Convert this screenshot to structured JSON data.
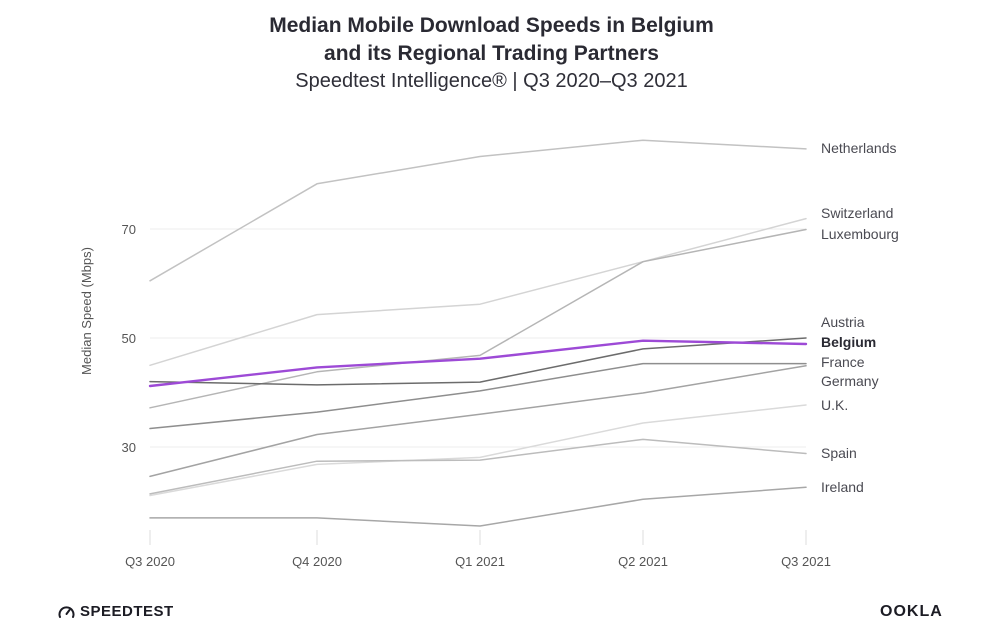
{
  "header": {
    "title_line1": "Median Mobile Download Speeds in Belgium",
    "title_line2": "and its Regional Trading Partners",
    "subtitle": "Speedtest Intelligence® | Q3 2020–Q3 2021"
  },
  "footer": {
    "brand_left": "SPEEDTEST",
    "brand_right": "OOKLA",
    "icon": "speedometer-icon"
  },
  "colors": {
    "belgium": "#9d4ad6",
    "grid": "#ececec",
    "axis": "#555555"
  },
  "chart_data": {
    "type": "line",
    "title": "Median Mobile Download Speeds in Belgium and its Regional Trading Partners",
    "subtitle": "Speedtest Intelligence® | Q3 2020–Q3 2021",
    "xlabel": "",
    "ylabel": "Median Speed (Mbps)",
    "categories": [
      "Q3 2020",
      "Q4 2020",
      "Q1 2021",
      "Q2 2021",
      "Q3 2021"
    ],
    "ylim": [
      15.5,
      88
    ],
    "yticks": [
      30,
      50,
      70
    ],
    "grid": true,
    "legend": "direct-labels-right",
    "highlight": "Belgium",
    "series": [
      {
        "name": "Netherlands",
        "values": [
          60.5,
          78.3,
          83.3,
          86.3,
          84.7
        ],
        "color": "#c2c2c2"
      },
      {
        "name": "Switzerland",
        "values": [
          45.0,
          54.3,
          56.2,
          64.0,
          71.9
        ],
        "color": "#d4d4d4"
      },
      {
        "name": "Luxembourg",
        "values": [
          37.2,
          43.8,
          46.8,
          64.0,
          69.9
        ],
        "color": "#b5b5b5"
      },
      {
        "name": "Austria",
        "values": [
          42.0,
          41.4,
          41.9,
          48.0,
          50.0
        ],
        "color": "#6c6c6c"
      },
      {
        "name": "Belgium",
        "values": [
          41.2,
          44.6,
          46.2,
          49.5,
          48.9
        ],
        "color": "#9d4ad6"
      },
      {
        "name": "France",
        "values": [
          33.4,
          36.4,
          40.3,
          45.3,
          45.3
        ],
        "color": "#8e8e8e"
      },
      {
        "name": "Germany",
        "values": [
          24.6,
          32.3,
          36.0,
          39.9,
          44.9
        ],
        "color": "#a3a3a3"
      },
      {
        "name": "U.K.",
        "values": [
          21.1,
          26.8,
          28.1,
          34.4,
          37.7
        ],
        "color": "#dadada"
      },
      {
        "name": "Spain",
        "values": [
          21.4,
          27.4,
          27.6,
          31.4,
          28.8
        ],
        "color": "#bcbcbc"
      },
      {
        "name": "Ireland",
        "values": [
          17.0,
          17.0,
          15.5,
          20.4,
          22.6
        ],
        "color": "#a7a7a7"
      }
    ]
  }
}
